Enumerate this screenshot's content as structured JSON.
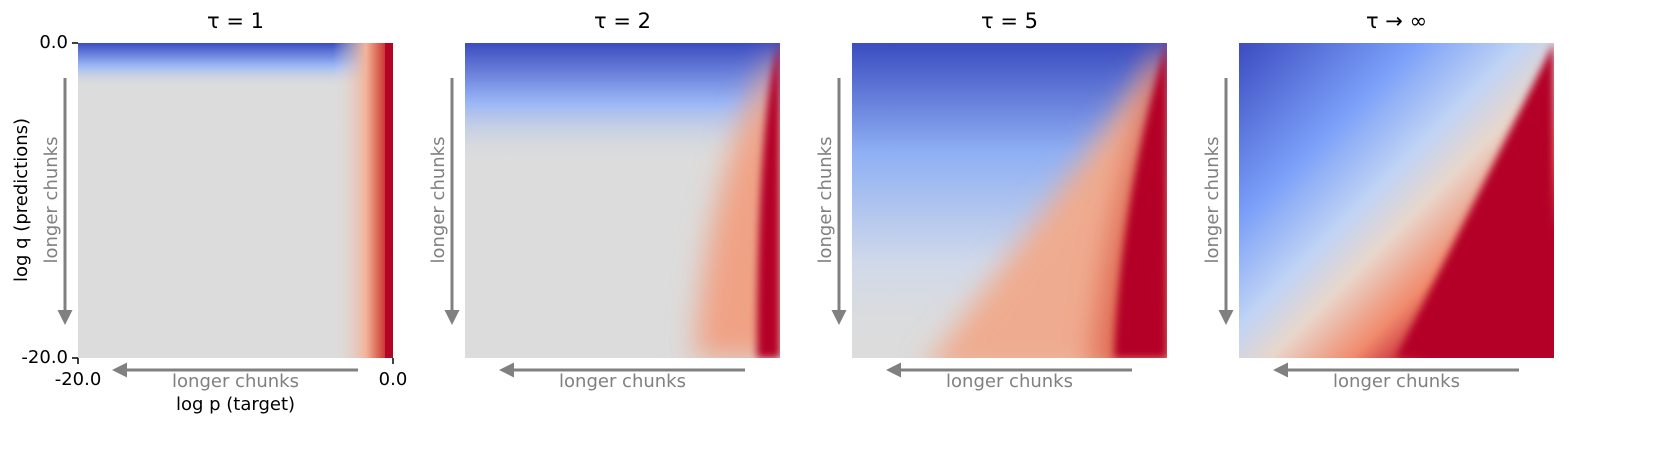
{
  "chart_data": [
    {
      "type": "heatmap",
      "title": "τ = 1",
      "xlabel": "log p (target)",
      "ylabel": "log q (predictions)",
      "xlim": [
        -20,
        0
      ],
      "xticks": [
        {
          "value": -20,
          "label": "-20.0"
        },
        {
          "value": 0,
          "label": "0.0"
        }
      ],
      "ylim": [
        -20,
        0
      ],
      "yticks": [
        {
          "value": -20,
          "label": "-20.0"
        },
        {
          "value": 0,
          "label": "0.0"
        }
      ],
      "annotations": [
        "longer chunks",
        "longer chunks"
      ]
    },
    {
      "type": "heatmap",
      "title": "τ = 2",
      "annotations": [
        "longer chunks",
        "longer chunks"
      ]
    },
    {
      "type": "heatmap",
      "title": "τ = 5",
      "annotations": [
        "longer chunks",
        "longer chunks"
      ]
    },
    {
      "type": "heatmap",
      "title": "τ → ∞",
      "annotations": [
        "longer chunks",
        "longer chunks"
      ]
    }
  ]
}
